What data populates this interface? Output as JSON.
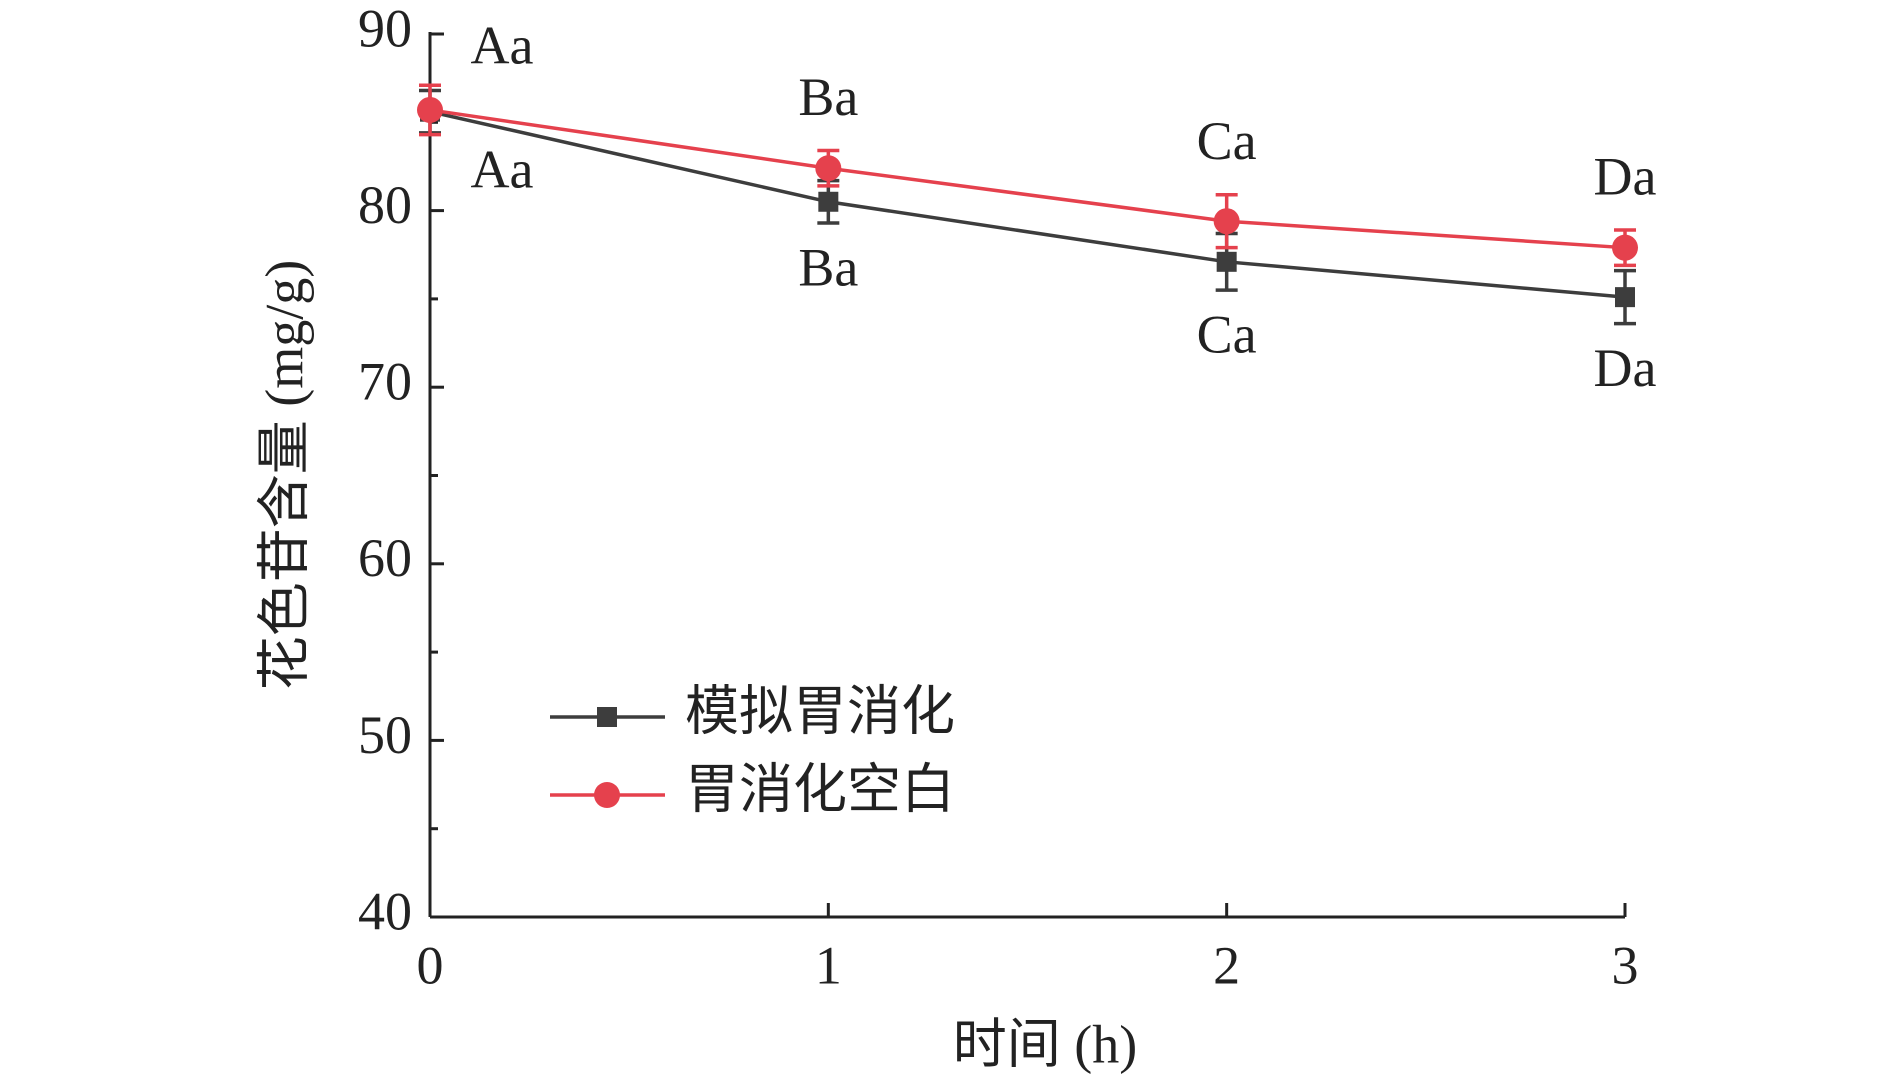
{
  "chart_data": {
    "type": "line",
    "x_label": "时间 (h)",
    "y_label": "花色苷含量 (mg/g)",
    "x": [
      0,
      1,
      2,
      3
    ],
    "xlim": [
      0,
      3
    ],
    "xticks": [
      0,
      1,
      2,
      3
    ],
    "ylim": [
      40,
      90
    ],
    "yticks": [
      40,
      50,
      60,
      70,
      80,
      90
    ],
    "series": [
      {
        "name": "模拟胃消化",
        "color": "#3d3d3d",
        "marker": "square",
        "values": [
          85.6,
          80.5,
          77.1,
          75.1
        ],
        "errors": [
          1.2,
          1.2,
          1.6,
          1.5
        ],
        "labels": [
          "Aa",
          "Ba",
          "Ca",
          "Da"
        ],
        "label_position": "below"
      },
      {
        "name": "胃消化空白",
        "color": "#e5414d",
        "marker": "circle",
        "values": [
          85.7,
          82.4,
          79.4,
          77.9
        ],
        "errors": [
          1.4,
          1.0,
          1.5,
          1.0
        ],
        "labels": [
          "Aa",
          "Ba",
          "Ca",
          "Da"
        ],
        "label_position": "above"
      }
    ]
  }
}
